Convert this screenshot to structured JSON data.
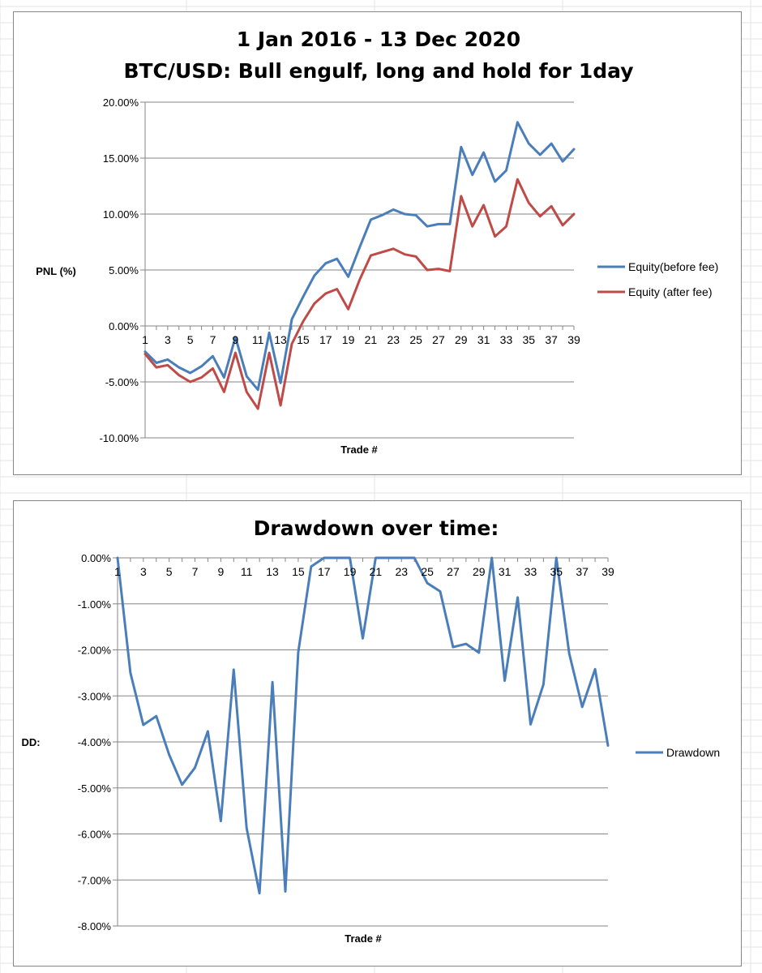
{
  "chart_data": [
    {
      "type": "line",
      "title": "1 Jan 2016 - 13 Dec 2020",
      "subtitle": "BTC/USD: Bull engulf, long and hold for 1day",
      "xlabel": "Trade #",
      "ylabel": "PNL (%)",
      "x": [
        1,
        2,
        3,
        4,
        5,
        6,
        7,
        8,
        9,
        10,
        11,
        12,
        13,
        14,
        15,
        16,
        17,
        18,
        19,
        20,
        21,
        22,
        23,
        24,
        25,
        26,
        27,
        28,
        29,
        30,
        31,
        32,
        33,
        34,
        35,
        36,
        37,
        38,
        39
      ],
      "x_tick_labels": [
        "1",
        "3",
        "5",
        "7",
        "9",
        "11",
        "13",
        "15",
        "17",
        "19",
        "21",
        "23",
        "25",
        "27",
        "29",
        "31",
        "33",
        "35",
        "37",
        "39"
      ],
      "y_tick_labels": [
        "20.00%",
        "15.00%",
        "10.00%",
        "5.00%",
        "0.00%",
        "-5.00%",
        "-10.00%"
      ],
      "ylim": [
        -10,
        20
      ],
      "grid": true,
      "legend_position": "right",
      "series": [
        {
          "name": "Equity(before fee)",
          "color": "#4a7ebb",
          "values": [
            -2.3,
            -3.3,
            -3.0,
            -3.7,
            -4.2,
            -3.6,
            -2.7,
            -4.6,
            -1.0,
            -4.5,
            -5.7,
            -0.6,
            -5.1,
            0.6,
            2.6,
            4.5,
            5.6,
            6.0,
            4.4,
            7.0,
            9.5,
            9.9,
            10.4,
            10.0,
            9.9,
            8.9,
            9.1,
            9.1,
            16.0,
            13.5,
            15.5,
            12.9,
            13.9,
            18.2,
            16.3,
            15.3,
            16.3,
            14.7,
            15.8
          ]
        },
        {
          "name": "Equity (after fee)",
          "color": "#be4b48",
          "values": [
            -2.5,
            -3.7,
            -3.5,
            -4.4,
            -5.0,
            -4.6,
            -3.8,
            -5.9,
            -2.4,
            -5.9,
            -7.4,
            -2.4,
            -7.1,
            -1.6,
            0.4,
            2.0,
            2.9,
            3.3,
            1.5,
            4.1,
            6.3,
            6.6,
            6.9,
            6.4,
            6.2,
            5.0,
            5.1,
            4.9,
            11.6,
            8.9,
            10.8,
            8.0,
            8.9,
            13.1,
            11.0,
            9.8,
            10.7,
            9.0,
            10.0
          ]
        }
      ]
    },
    {
      "type": "line",
      "title": "Drawdown over time:",
      "xlabel": "Trade #",
      "ylabel": "DD:",
      "x": [
        1,
        2,
        3,
        4,
        5,
        6,
        7,
        8,
        9,
        10,
        11,
        12,
        13,
        14,
        15,
        16,
        17,
        18,
        19,
        20,
        21,
        22,
        23,
        24,
        25,
        26,
        27,
        28,
        29,
        30,
        31,
        32,
        33,
        34,
        35,
        36,
        37,
        38,
        39
      ],
      "x_tick_labels": [
        "1",
        "3",
        "5",
        "7",
        "9",
        "11",
        "13",
        "15",
        "17",
        "19",
        "21",
        "23",
        "25",
        "27",
        "29",
        "31",
        "33",
        "35",
        "37",
        "39"
      ],
      "y_tick_labels": [
        "0.00%",
        "-1.00%",
        "-2.00%",
        "-3.00%",
        "-4.00%",
        "-5.00%",
        "-6.00%",
        "-7.00%",
        "-8.00%"
      ],
      "ylim": [
        -8,
        0
      ],
      "grid": true,
      "legend_position": "right",
      "series": [
        {
          "name": "Drawdown",
          "color": "#4a7ebb",
          "values": [
            0,
            -2.5,
            -3.63,
            -3.44,
            -4.28,
            -4.93,
            -4.56,
            -3.77,
            -5.72,
            -2.43,
            -5.87,
            -7.29,
            -2.7,
            -7.25,
            -2.05,
            -0.19,
            0,
            0,
            0,
            -1.75,
            0,
            0,
            0,
            0,
            -0.55,
            -0.73,
            -1.94,
            -1.87,
            -2.06,
            0,
            -2.67,
            -0.86,
            -3.62,
            -2.75,
            0,
            -2.08,
            -3.24,
            -2.42,
            -4.08
          ]
        }
      ]
    }
  ]
}
